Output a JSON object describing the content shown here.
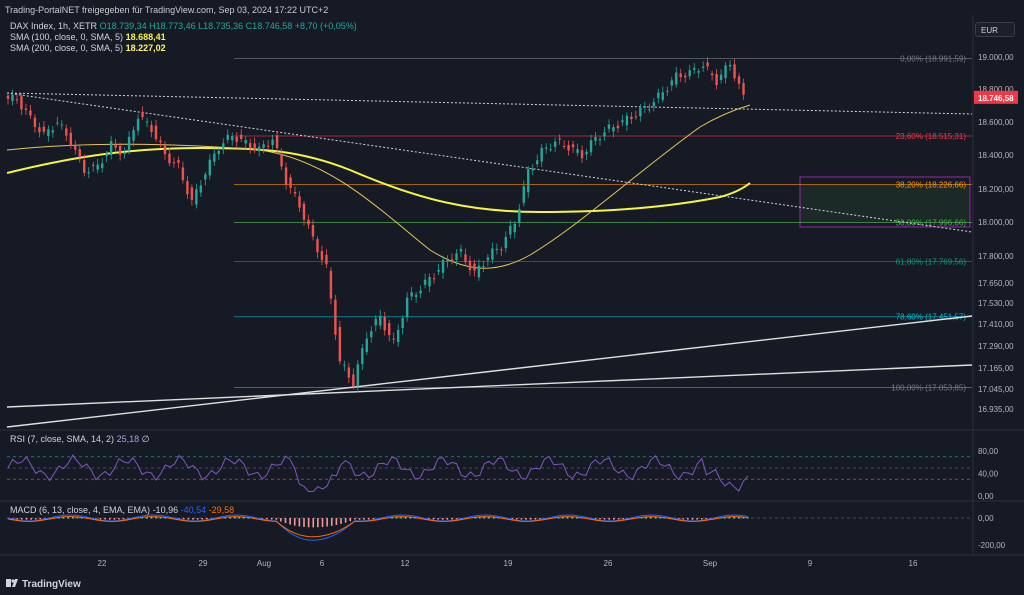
{
  "window": {
    "title": "Trading-PortalNET freigegeben für TradingView.com, Sep 03, 2024 17:22 UTC+2",
    "currency_button": "EUR",
    "logo_text": "TradingView"
  },
  "legend": {
    "symbol": "DAX Index, 1h, XETR",
    "ohlc": "O18.739,34 H18.773,46 L18.735,36 C18.746,58 +8,70 (+0,05%)",
    "sma100_label": "SMA (100, close, 0, SMA, 5)",
    "sma100_value": "18.688,41",
    "sma200_label": "SMA (200, close, 0, SMA, 5)",
    "sma200_value": "18.227,02",
    "rsi_label": "RSI (7, close, SMA, 14, 2)",
    "rsi_value": "25,18",
    "rsi_extra": "∅",
    "macd_label": "MACD (6, 13, close, 4, EMA, EMA)",
    "macd_v1": "-10,96",
    "macd_v2": "-40,54",
    "macd_v3": "-29,58"
  },
  "chart_data": {
    "type": "candlestick",
    "price_axis_ticks": [
      "19.000,00",
      "18.800,00",
      "18.600,00",
      "18.400,00",
      "18.200,00",
      "18.000,00",
      "17.800,00",
      "17.650,00",
      "17.530,00",
      "17.410,00",
      "17.290,00",
      "17.165,00",
      "17.045,00",
      "16.935,00"
    ],
    "current_price_label": "18.746,58",
    "rsi_ticks": [
      "80,00",
      "40,00",
      "0,00"
    ],
    "macd_ticks": [
      "0,00",
      "-200,00"
    ],
    "x_ticks": [
      "22",
      "29",
      "Aug",
      "6",
      "12",
      "19",
      "26",
      "Sep",
      "9",
      "16"
    ],
    "fib_levels": [
      {
        "label": "0,00% (18.991,59)",
        "value": 18991.59,
        "color": "#787b86"
      },
      {
        "label": "23,60% (18.515,31)",
        "value": 18515.31,
        "color": "#f23645"
      },
      {
        "label": "38,20% (18.226,66)",
        "value": 18226.66,
        "color": "#ff9800"
      },
      {
        "label": "50,00% (17.996,66)",
        "value": 17996.66,
        "color": "#4caf50"
      },
      {
        "label": "61,80% (17.769,56)",
        "value": 17769.56,
        "color": "#089981"
      },
      {
        "label": "78,60% (17.451,57)",
        "value": 17451.57,
        "color": "#00bcd4"
      },
      {
        "label": "100,00% (17.053,85)",
        "value": 17053.85,
        "color": "#787b86"
      }
    ],
    "close_path": [
      [
        "17",
        18740
      ],
      [
        "18",
        18620
      ],
      [
        "19",
        18520
      ],
      [
        "19",
        18600
      ],
      [
        "20",
        18480
      ],
      [
        "21",
        18310
      ],
      [
        "22",
        18330
      ],
      [
        "22",
        18460
      ],
      [
        "23",
        18410
      ],
      [
        "24",
        18640
      ],
      [
        "25",
        18560
      ],
      [
        "26",
        18400
      ],
      [
        "27",
        18330
      ],
      [
        "28",
        18120
      ],
      [
        "28",
        18300
      ],
      [
        "29",
        18450
      ],
      [
        "30",
        18520
      ],
      [
        "31",
        18470
      ],
      [
        "Aug",
        18430
      ],
      [
        "Aug",
        18500
      ],
      [
        "2",
        18250
      ],
      [
        "2",
        18100
      ],
      [
        "Aug",
        17900
      ],
      [
        "5",
        17730
      ],
      [
        "5",
        17200
      ],
      [
        "5",
        17080
      ],
      [
        "6",
        17350
      ],
      [
        "6",
        17450
      ],
      [
        "7",
        17300
      ],
      [
        "7",
        17550
      ],
      [
        "8",
        17620
      ],
      [
        "9",
        17700
      ],
      [
        "10",
        17780
      ],
      [
        "12",
        17820
      ],
      [
        "13",
        17700
      ],
      [
        "14",
        17800
      ],
      [
        "15",
        17860
      ],
      [
        "16",
        18000
      ],
      [
        "17",
        18300
      ],
      [
        "19",
        18420
      ],
      [
        "20",
        18480
      ],
      [
        "21",
        18450
      ],
      [
        "22",
        18400
      ],
      [
        "23",
        18500
      ],
      [
        "24",
        18560
      ],
      [
        "26",
        18600
      ],
      [
        "27",
        18650
      ],
      [
        "28",
        18700
      ],
      [
        "29",
        18780
      ],
      [
        "30",
        18880
      ],
      [
        "31",
        18900
      ],
      [
        "Sep",
        18950
      ],
      [
        "Sep",
        18850
      ],
      [
        "2",
        18960
      ],
      [
        "3",
        18747
      ]
    ]
  }
}
